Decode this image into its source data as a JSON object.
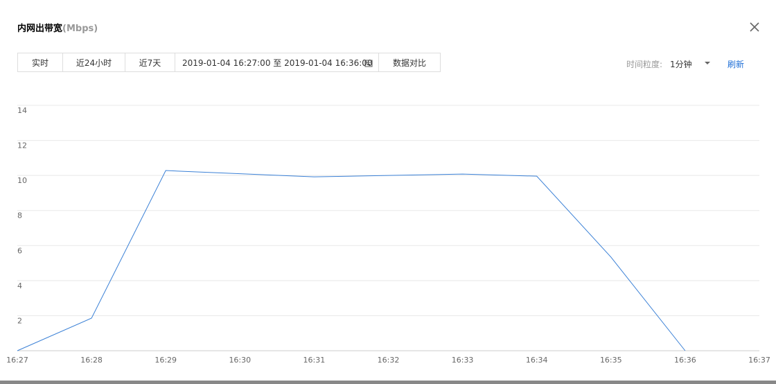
{
  "header": {
    "title": "内网出带宽",
    "unit": "(Mbps)"
  },
  "toolbar": {
    "ranges": [
      "实时",
      "近24小时",
      "近7天"
    ],
    "date_range": "2019-01-04 16:27:00 至 2019-01-04 16:36:00",
    "compare": "数据对比",
    "granularity_label": "时间粒度:",
    "granularity": "1分钟",
    "refresh": "刷新"
  },
  "chart_data": {
    "type": "line",
    "categories": [
      "16:27",
      "16:28",
      "16:29",
      "16:30",
      "16:31",
      "16:32",
      "16:33",
      "16:34",
      "16:35",
      "16:36",
      "16:37"
    ],
    "series": [
      {
        "name": "内网出带宽",
        "color": "#3a80d6",
        "values": [
          0,
          1.86,
          10.28,
          10.1,
          9.92,
          10.0,
          10.08,
          9.96,
          5.34,
          0,
          null
        ]
      }
    ],
    "ylim": [
      0,
      14
    ],
    "yticks": [
      2,
      4,
      6,
      8,
      10,
      12,
      14
    ],
    "grid": true
  }
}
